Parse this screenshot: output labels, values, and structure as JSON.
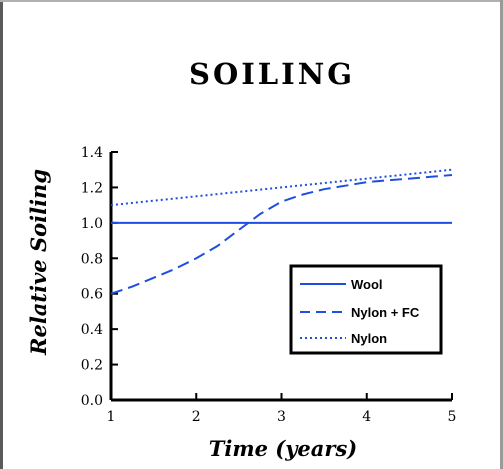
{
  "chart_data": {
    "type": "line",
    "title": "SOILING",
    "xlabel": "Time (years)",
    "ylabel": "Relative Soiling",
    "xlim": [
      1,
      5
    ],
    "ylim": [
      0.0,
      1.4
    ],
    "x_ticks": [
      "1",
      "2",
      "3",
      "4",
      "5"
    ],
    "y_ticks": [
      "0.0",
      "0.2",
      "0.4",
      "0.6",
      "0.8",
      "1.0",
      "1.2",
      "1.4"
    ],
    "grid": false,
    "legend_position": "bottom-right",
    "series": [
      {
        "name": "Wool",
        "style": "solid",
        "color": "#1f4fe0",
        "x": [
          1,
          1.5,
          2,
          2.5,
          3,
          3.5,
          4,
          4.5,
          5
        ],
        "y": [
          1.0,
          1.0,
          1.0,
          1.0,
          1.0,
          1.0,
          1.0,
          1.0,
          1.0
        ]
      },
      {
        "name": "Nylon + FC",
        "style": "dashed",
        "color": "#1f4fe0",
        "x": [
          1,
          1.25,
          1.5,
          1.75,
          2,
          2.25,
          2.5,
          2.75,
          3,
          3.25,
          3.5,
          3.75,
          4,
          4.25,
          4.5,
          4.75,
          5
        ],
        "y": [
          0.6,
          0.64,
          0.69,
          0.74,
          0.8,
          0.87,
          0.96,
          1.05,
          1.12,
          1.16,
          1.19,
          1.21,
          1.23,
          1.24,
          1.25,
          1.26,
          1.27
        ]
      },
      {
        "name": "Nylon",
        "style": "dotted",
        "color": "#1f4fe0",
        "x": [
          1,
          2,
          3,
          4,
          5
        ],
        "y": [
          1.1,
          1.15,
          1.2,
          1.25,
          1.3
        ]
      }
    ]
  }
}
